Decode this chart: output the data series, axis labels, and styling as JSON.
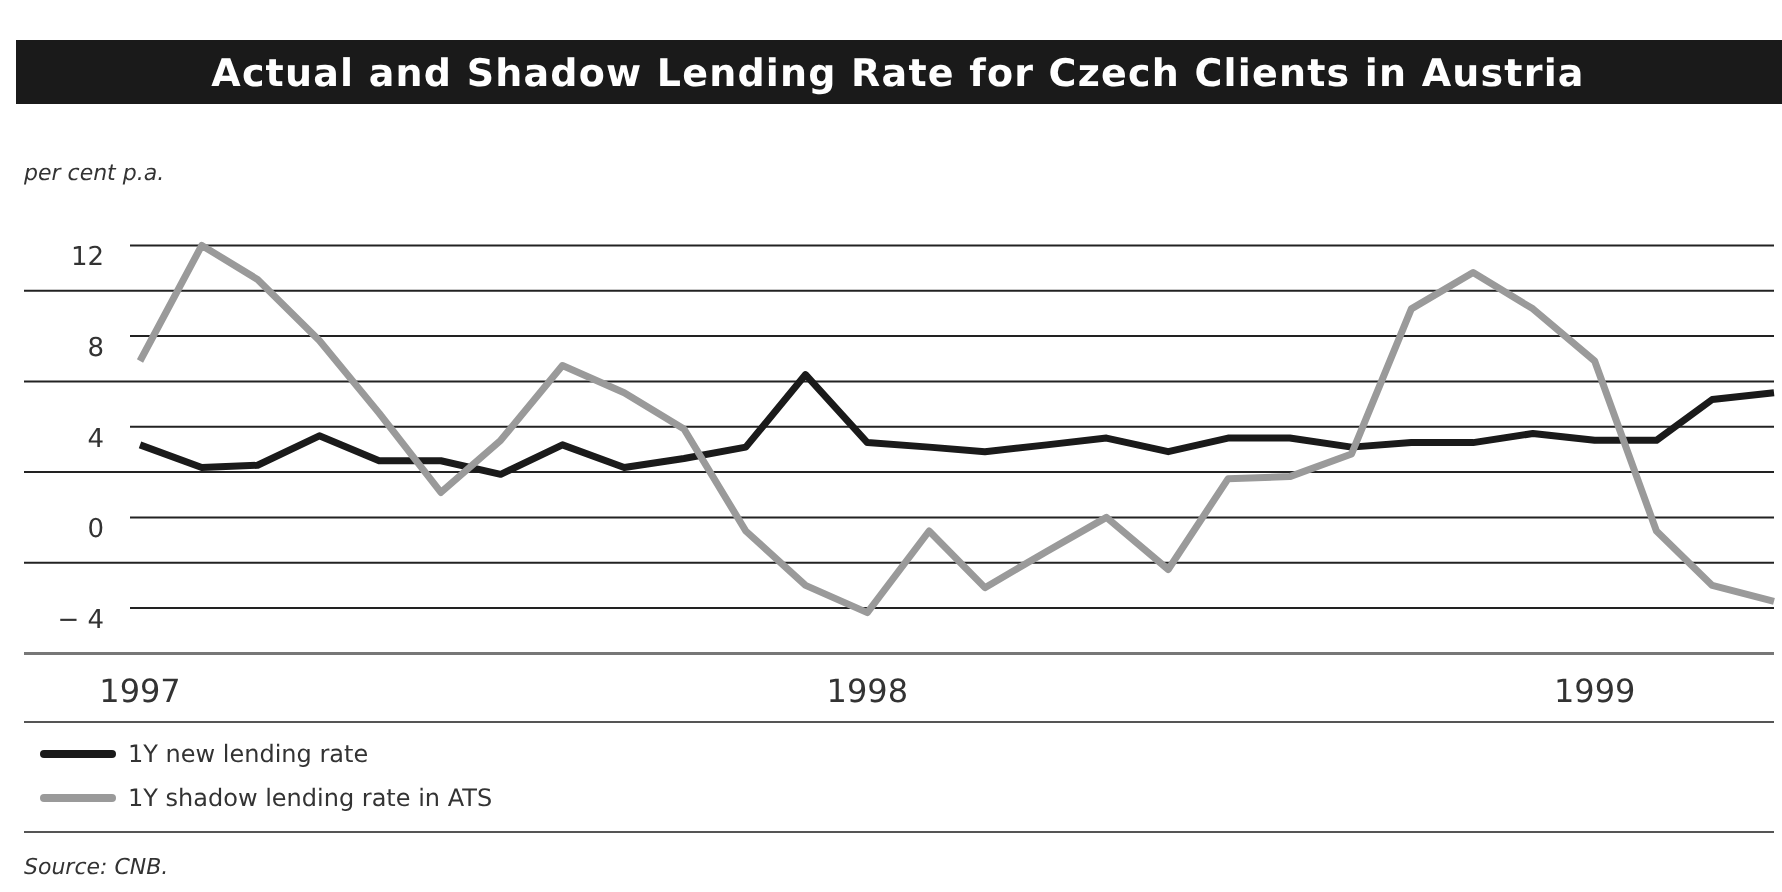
{
  "chart_data": {
    "type": "line",
    "title": "Actual and Shadow Lending Rate for Czech Clients in Austria",
    "ylabel": "per cent p.a.",
    "x": [
      "1997-01",
      "1997-02",
      "1997-03",
      "1997-04",
      "1997-05",
      "1997-06",
      "1997-07",
      "1997-08",
      "1997-09",
      "1997-10",
      "1997-11",
      "1997-12",
      "1998-01",
      "1998-02",
      "1998-03",
      "1998-04",
      "1998-05",
      "1998-06",
      "1998-07",
      "1998-08",
      "1998-09",
      "1998-10",
      "1998-11",
      "1998-12",
      "1999-01",
      "1999-02",
      "1999-03",
      "1999-04"
    ],
    "series": [
      {
        "name": "1Y new lending rate",
        "color": "#1a1a1a",
        "values": [
          3.2,
          2.2,
          2.3,
          3.6,
          2.5,
          2.5,
          1.9,
          3.2,
          2.2,
          2.6,
          3.1,
          6.3,
          3.3,
          3.1,
          2.9,
          3.2,
          3.5,
          2.9,
          3.5,
          3.5,
          3.1,
          3.3,
          3.3,
          3.7,
          3.4,
          3.4,
          5.2,
          5.5
        ]
      },
      {
        "name": "1Y shadow lending rate in ATS",
        "color": "#9a9a9a",
        "values": [
          6.9,
          12.0,
          10.5,
          7.8,
          4.6,
          1.1,
          3.4,
          6.7,
          5.5,
          3.9,
          -0.6,
          -3.0,
          -4.2,
          -0.6,
          -3.1,
          -1.5,
          0.0,
          -2.3,
          1.7,
          1.8,
          2.8,
          9.2,
          10.8,
          9.2,
          6.9,
          -0.6,
          -3.0,
          -3.7
        ]
      }
    ],
    "xlim": [
      "1997-01",
      "1999-04"
    ],
    "xticks": [
      {
        "value": "1997-01",
        "label": "1997"
      },
      {
        "value": "1998-01",
        "label": "1998"
      },
      {
        "value": "1999-01",
        "label": "1999"
      }
    ],
    "ylim": [
      -6,
      12
    ],
    "yticks": [
      {
        "value": -6,
        "label": null
      },
      {
        "value": -4,
        "label": "− 4"
      },
      {
        "value": -2,
        "label": null
      },
      0,
      {
        "value": 2,
        "label": null
      },
      4,
      {
        "value": 6,
        "label": null
      },
      8,
      {
        "value": 10,
        "label": null
      },
      12
    ],
    "grid": "y",
    "legend": "bottom",
    "line_style": "solid",
    "marker": "none",
    "annotations": [
      "Source: CNB."
    ]
  }
}
